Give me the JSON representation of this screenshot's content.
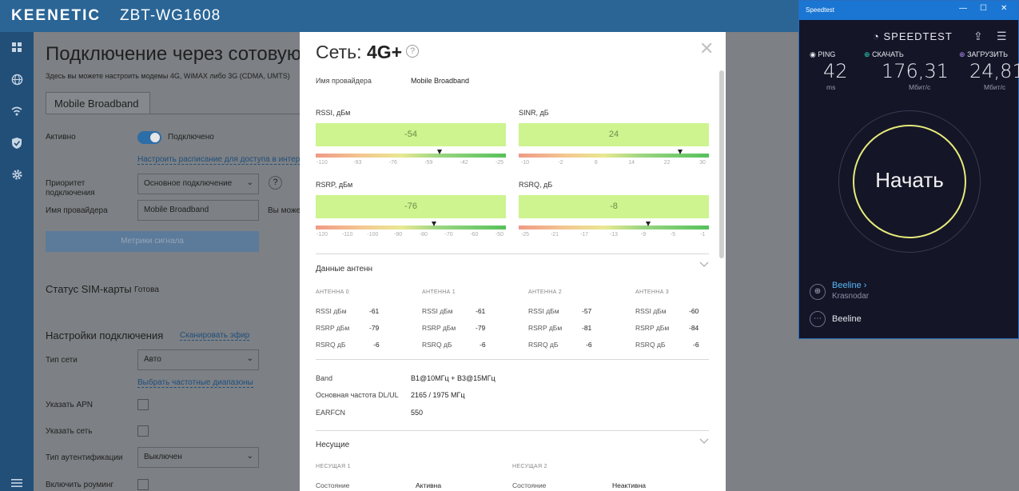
{
  "header": {
    "logo": "KEENETIC",
    "model": "ZBT-WG1608"
  },
  "sidenav": {
    "icons": [
      "dashboard-icon",
      "globe-icon",
      "wifi-icon",
      "shield-icon",
      "gear-icon",
      "menu-icon"
    ]
  },
  "page": {
    "title": "Подключение через сотовую",
    "description": "Здесь вы можете настроить модемы 4G, WiMAX либо 3G (CDMA, UMTS)",
    "tab": "Mobile Broadband",
    "active_label": "Активно",
    "active_state": "Подключено",
    "schedule_link": "Настроить расписание для доступа в интерне",
    "priority_label_1": "Приоритет",
    "priority_label_2": "подключения",
    "priority_value": "Основное подключение",
    "provider_label": "Имя провайдера",
    "provider_value": "Mobile Broadband",
    "provider_hint": "Вы може",
    "metrics_button": "Метрики сигнала",
    "sim_label": "Статус SIM-карты",
    "sim_value": "Готова",
    "settings_title": "Настройки подключения",
    "scan_link": "Сканировать эфир",
    "net_type_label": "Тип сети",
    "net_type_value": "Авто",
    "bands_link": "Выбрать частотные диапазоны",
    "apn_label": "Указать APN",
    "network_label": "Указать сеть",
    "auth_label": "Тип аутентификации",
    "auth_value": "Выключен",
    "roaming_label": "Включить роуминг"
  },
  "modal": {
    "title_prefix": "Сеть:",
    "title_value": "4G+",
    "provider_label": "Имя провайдера",
    "provider_value": "Mobile Broadband",
    "metrics": [
      {
        "label": "RSSI, дБм",
        "value": "-54",
        "level": 0.65,
        "ticks": [
          "-110",
          "-93",
          "-76",
          "-59",
          "-42",
          "-25"
        ]
      },
      {
        "label": "SINR, дБ",
        "value": "24",
        "level": 0.85,
        "ticks": [
          "-10",
          "-2",
          "6",
          "14",
          "22",
          "30"
        ]
      },
      {
        "label": "RSRP, дБм",
        "value": "-76",
        "level": 0.62,
        "ticks": [
          "-120",
          "-110",
          "-100",
          "-90",
          "-80",
          "-70",
          "-60",
          "-50"
        ]
      },
      {
        "label": "RSRQ, дБ",
        "value": "-8",
        "level": 0.68,
        "ticks": [
          "-25",
          "-21",
          "-17",
          "-13",
          "-9",
          "-5",
          "-1"
        ]
      }
    ],
    "antenna_section": "Данные антенн",
    "antennas": [
      {
        "title": "АНТЕННА 0",
        "rssi": "-61",
        "rsrp": "-79",
        "rsrq": "-6"
      },
      {
        "title": "АНТЕННА 1",
        "rssi": "-61",
        "rsrp": "-79",
        "rsrq": "-6"
      },
      {
        "title": "АНТЕННА 2",
        "rssi": "-57",
        "rsrp": "-81",
        "rsrq": "-6"
      },
      {
        "title": "АНТЕННА 3",
        "rssi": "-60",
        "rsrp": "-84",
        "rsrq": "-6"
      }
    ],
    "ant_keys": {
      "rssi": "RSSI дБм",
      "rsrp": "RSRP дБм",
      "rsrq": "RSRQ дБ"
    },
    "band_label": "Band",
    "band_value": "B1@10МГц + B3@15МГц",
    "freq_label": "Основная частота DL/UL",
    "freq_value": "2165 / 1975 МГц",
    "earfcn_label": "EARFCN",
    "earfcn_value": "550",
    "carriers_section": "Несущие",
    "carrier1_title": "НЕСУЩАЯ 1",
    "carrier2_title": "НЕСУЩАЯ 2",
    "state_label": "Состояние",
    "carrier1_state": "Активна",
    "carrier2_state": "Неактивна"
  },
  "speedtest": {
    "window_title": "Speedtest",
    "brand": "SPEEDTEST",
    "ping_label": "PING",
    "ping_value": "42",
    "ping_unit": "ms",
    "download_label": "СКАЧАТЬ",
    "download_value": "176,31",
    "download_unit": "Мбит/с",
    "upload_label": "ЗАГРУЗИТЬ",
    "upload_value": "24,81",
    "upload_unit": "Мбит/с",
    "go_label": "Начать",
    "isp_name": "Beeline",
    "isp_city": "Krasnodar",
    "server_name": "Beeline",
    "accent_color": "#e6ea7a"
  }
}
